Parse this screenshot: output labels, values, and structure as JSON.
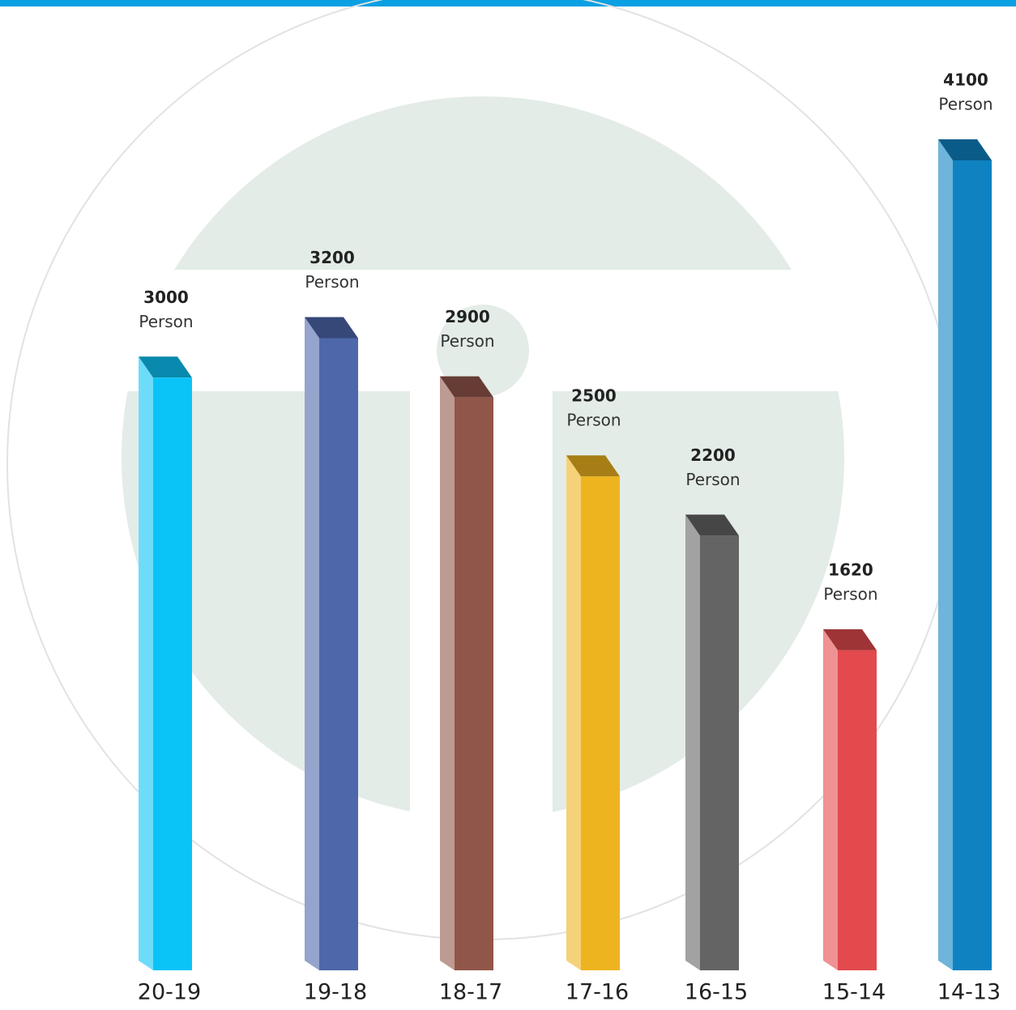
{
  "chart_data": {
    "type": "bar3d",
    "categories": [
      "20-19",
      "19-18",
      "18-17",
      "17-16",
      "16-15",
      "15-14",
      "14-13"
    ],
    "values": [
      3000,
      3200,
      2900,
      2500,
      2200,
      1620,
      4100
    ],
    "unit": "Person",
    "colors": [
      "#0bc4f7",
      "#4d67aa",
      "#91564a",
      "#eeb420",
      "#646464",
      "#e24a4d",
      "#0f82c2"
    ]
  }
}
